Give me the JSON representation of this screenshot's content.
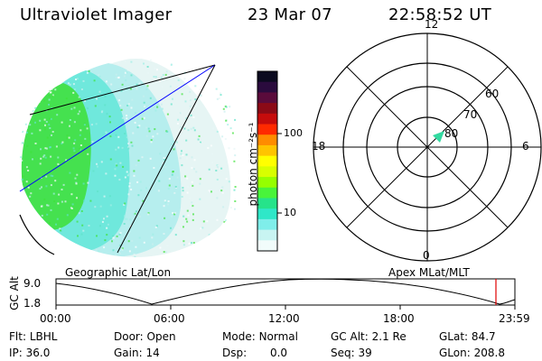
{
  "header": {
    "title": "Ultraviolet Imager",
    "date": "23 Mar 07",
    "time": "22:58:52 UT"
  },
  "colorbar": {
    "unit_label": "photon cm⁻²s⁻¹",
    "ticks": [
      "100",
      "10"
    ],
    "colors": [
      "#0b0a1f",
      "#2a0b3d",
      "#5a0b3b",
      "#8b0a16",
      "#c60c0c",
      "#ff2a00",
      "#ff8c00",
      "#ffc400",
      "#ffff00",
      "#d8ff00",
      "#96ff00",
      "#49f43a",
      "#26e38a",
      "#2fe7c8",
      "#7feeea",
      "#c8f4f2",
      "#f1fcfb"
    ]
  },
  "polar_plot": {
    "mlt_labels": [
      "12",
      "18",
      "6",
      "0"
    ],
    "mlat_labels": [
      "60",
      "70",
      "80"
    ],
    "spot_color": "#33d9a0"
  },
  "timeline": {
    "left_title": "Geographic Lat/Lon",
    "right_title": "Apex MLat/MLT",
    "y_title": "GC Alt",
    "y_ticks": [
      "9.0",
      "1.8"
    ],
    "x_ticks": [
      "00:00",
      "06:00",
      "12:00",
      "18:00",
      "23:59"
    ],
    "marker_color": "#e00000"
  },
  "status": {
    "flt_label": "Flt:",
    "flt_value": "LBHL",
    "ip_label": "IP:",
    "ip_value": "36.0",
    "door_label": "Door:",
    "door_value": "Open",
    "gain_label": "Gain:",
    "gain_value": "14",
    "mode_label": "Mode:",
    "mode_value": "Normal",
    "dsp_label": "Dsp:",
    "dsp_value": "0.0",
    "gcalt_label": "GC Alt:",
    "gcalt_value": "2.1 Re",
    "seq_label": "Seq:",
    "seq_value": "39",
    "glat_label": "GLat:",
    "glat_value": "84.7",
    "glon_label": "GLon:",
    "glon_value": "208.8"
  },
  "image_colors": {
    "bright": "#3fe23a",
    "mid": "#2ee6c6",
    "dim": "#8fe9ec",
    "faint": "#d2f0ee",
    "pole_line": "#0000ff",
    "frame_line": "#000000"
  }
}
